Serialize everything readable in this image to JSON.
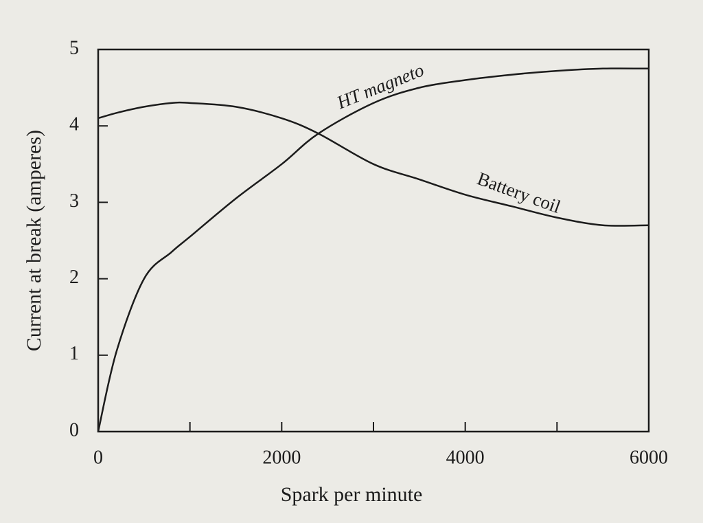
{
  "chart_data": {
    "type": "line",
    "xlabel": "Spark per minute",
    "ylabel": "Current at break (amperes)",
    "x": [
      0,
      200,
      500,
      800,
      1000,
      1500,
      2000,
      2400,
      3000,
      3500,
      4000,
      4500,
      5000,
      5500,
      6000
    ],
    "series": [
      {
        "name": "HT magneto",
        "color": "#1c1c1c",
        "values": [
          0,
          1.05,
          2.0,
          2.35,
          2.55,
          3.05,
          3.5,
          3.9,
          4.3,
          4.5,
          4.6,
          4.67,
          4.72,
          4.75,
          4.75
        ]
      },
      {
        "name": "Battery coil",
        "color": "#1c1c1c",
        "values": [
          4.1,
          4.17,
          4.25,
          4.3,
          4.3,
          4.25,
          4.1,
          3.9,
          3.5,
          3.3,
          3.1,
          2.95,
          2.8,
          2.7,
          2.7
        ]
      }
    ],
    "xlim": [
      0,
      6000
    ],
    "xticks": [
      0,
      2000,
      4000,
      6000
    ],
    "xminorticks": [
      1000,
      3000,
      5000
    ],
    "ylim": [
      0,
      5
    ],
    "yticks": [
      0,
      1,
      2,
      3,
      4,
      5
    ]
  }
}
